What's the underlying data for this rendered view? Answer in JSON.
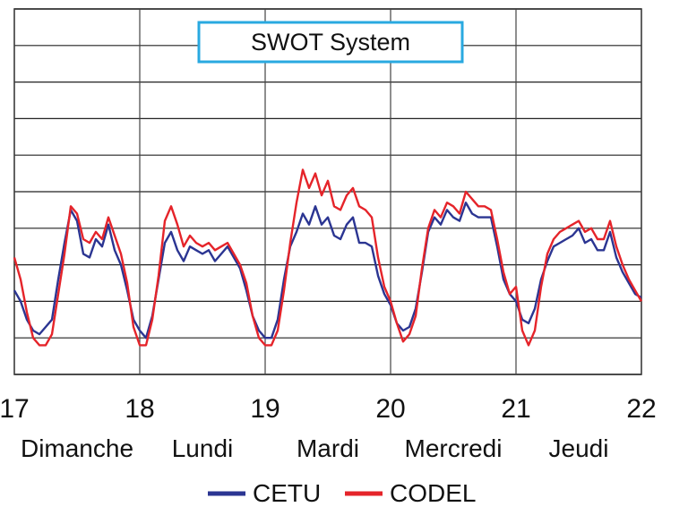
{
  "chart_data": {
    "type": "line",
    "title": "SWOT System",
    "xlabel": "",
    "ylabel": "",
    "xlim": [
      17,
      22
    ],
    "ylim": [
      0,
      10
    ],
    "grid": true,
    "x_ticks": [
      "17",
      "18",
      "19",
      "20",
      "21",
      "22"
    ],
    "day_labels": [
      {
        "x": 17.5,
        "label": "Dimanche"
      },
      {
        "x": 18.5,
        "label": "Lundi"
      },
      {
        "x": 19.5,
        "label": "Mardi"
      },
      {
        "x": 20.5,
        "label": "Mercredi"
      },
      {
        "x": 21.5,
        "label": "Jeudi"
      }
    ],
    "legend_position": "bottom",
    "series": [
      {
        "name": "CETU",
        "color": "#2b3592",
        "x": [
          17.0,
          17.05,
          17.1,
          17.15,
          17.2,
          17.25,
          17.3,
          17.35,
          17.4,
          17.45,
          17.5,
          17.55,
          17.6,
          17.65,
          17.7,
          17.75,
          17.8,
          17.85,
          17.9,
          17.95,
          18.0,
          18.05,
          18.1,
          18.15,
          18.2,
          18.25,
          18.3,
          18.35,
          18.4,
          18.45,
          18.5,
          18.55,
          18.6,
          18.65,
          18.7,
          18.75,
          18.8,
          18.85,
          18.9,
          18.95,
          19.0,
          19.05,
          19.1,
          19.15,
          19.2,
          19.25,
          19.3,
          19.35,
          19.4,
          19.45,
          19.5,
          19.55,
          19.6,
          19.65,
          19.7,
          19.75,
          19.8,
          19.85,
          19.9,
          19.95,
          20.0,
          20.05,
          20.1,
          20.15,
          20.2,
          20.25,
          20.3,
          20.35,
          20.4,
          20.45,
          20.5,
          20.55,
          20.6,
          20.65,
          20.7,
          20.75,
          20.8,
          20.85,
          20.9,
          20.95,
          21.0,
          21.05,
          21.1,
          21.15,
          21.2,
          21.25,
          21.3,
          21.35,
          21.4,
          21.45,
          21.5,
          21.55,
          21.6,
          21.65,
          21.7,
          21.75,
          21.8,
          21.85,
          21.9,
          21.95,
          22.0
        ],
        "values": [
          2.3,
          2.0,
          1.5,
          1.2,
          1.1,
          1.3,
          1.5,
          2.6,
          3.6,
          4.5,
          4.2,
          3.3,
          3.2,
          3.7,
          3.5,
          4.1,
          3.4,
          3.0,
          2.3,
          1.5,
          1.2,
          1.0,
          1.6,
          2.6,
          3.6,
          3.9,
          3.4,
          3.1,
          3.5,
          3.4,
          3.3,
          3.4,
          3.1,
          3.3,
          3.5,
          3.2,
          2.9,
          2.3,
          1.6,
          1.2,
          1.0,
          1.0,
          1.5,
          2.6,
          3.5,
          3.9,
          4.4,
          4.1,
          4.6,
          4.1,
          4.3,
          3.8,
          3.7,
          4.1,
          4.3,
          3.6,
          3.6,
          3.5,
          2.7,
          2.2,
          1.9,
          1.4,
          1.2,
          1.3,
          1.8,
          2.8,
          3.9,
          4.3,
          4.1,
          4.5,
          4.3,
          4.2,
          4.7,
          4.4,
          4.3,
          4.3,
          4.3,
          3.5,
          2.6,
          2.2,
          2.0,
          1.5,
          1.4,
          1.8,
          2.6,
          3.1,
          3.5,
          3.6,
          3.7,
          3.8,
          4.0,
          3.6,
          3.7,
          3.4,
          3.4,
          3.9,
          3.2,
          2.8,
          2.5,
          2.2,
          2.1
        ],
        "note_in_json_is_not_allowed": ""
      },
      {
        "name": "CODEL",
        "color": "#e5242a",
        "x": [
          17.0,
          17.05,
          17.1,
          17.15,
          17.2,
          17.25,
          17.3,
          17.35,
          17.4,
          17.45,
          17.5,
          17.55,
          17.6,
          17.65,
          17.7,
          17.75,
          17.8,
          17.85,
          17.9,
          17.95,
          18.0,
          18.05,
          18.1,
          18.15,
          18.2,
          18.25,
          18.3,
          18.35,
          18.4,
          18.45,
          18.5,
          18.55,
          18.6,
          18.65,
          18.7,
          18.75,
          18.8,
          18.85,
          18.9,
          18.95,
          19.0,
          19.05,
          19.1,
          19.15,
          19.2,
          19.25,
          19.3,
          19.35,
          19.4,
          19.45,
          19.5,
          19.55,
          19.6,
          19.65,
          19.7,
          19.75,
          19.8,
          19.85,
          19.9,
          19.95,
          20.0,
          20.05,
          20.1,
          20.15,
          20.2,
          20.25,
          20.3,
          20.35,
          20.4,
          20.45,
          20.5,
          20.55,
          20.6,
          20.65,
          20.7,
          20.75,
          20.8,
          20.85,
          20.9,
          20.95,
          21.0,
          21.05,
          21.1,
          21.15,
          21.2,
          21.25,
          21.3,
          21.35,
          21.4,
          21.45,
          21.5,
          21.55,
          21.6,
          21.65,
          21.7,
          21.75,
          21.8,
          21.85,
          21.9,
          21.95,
          22.0
        ],
        "values": [
          3.2,
          2.6,
          1.7,
          1.0,
          0.8,
          0.8,
          1.1,
          2.2,
          3.3,
          4.6,
          4.4,
          3.7,
          3.6,
          3.9,
          3.7,
          4.3,
          3.8,
          3.3,
          2.5,
          1.3,
          0.8,
          0.8,
          1.5,
          2.7,
          4.2,
          4.6,
          4.1,
          3.5,
          3.8,
          3.6,
          3.5,
          3.6,
          3.4,
          3.5,
          3.6,
          3.3,
          3.0,
          2.5,
          1.6,
          1.0,
          0.8,
          0.8,
          1.2,
          2.3,
          3.6,
          4.7,
          5.6,
          5.1,
          5.5,
          4.9,
          5.3,
          4.6,
          4.5,
          4.9,
          5.1,
          4.6,
          4.5,
          4.3,
          3.2,
          2.4,
          2.0,
          1.4,
          0.9,
          1.1,
          1.6,
          2.9,
          4.0,
          4.5,
          4.3,
          4.7,
          4.6,
          4.4,
          5.0,
          4.8,
          4.6,
          4.6,
          4.5,
          3.7,
          2.8,
          2.2,
          2.4,
          1.2,
          0.8,
          1.2,
          2.4,
          3.3,
          3.7,
          3.9,
          4.0,
          4.1,
          4.2,
          3.9,
          4.0,
          3.7,
          3.7,
          4.2,
          3.5,
          3.0,
          2.6,
          2.3,
          2.0
        ]
      }
    ]
  }
}
